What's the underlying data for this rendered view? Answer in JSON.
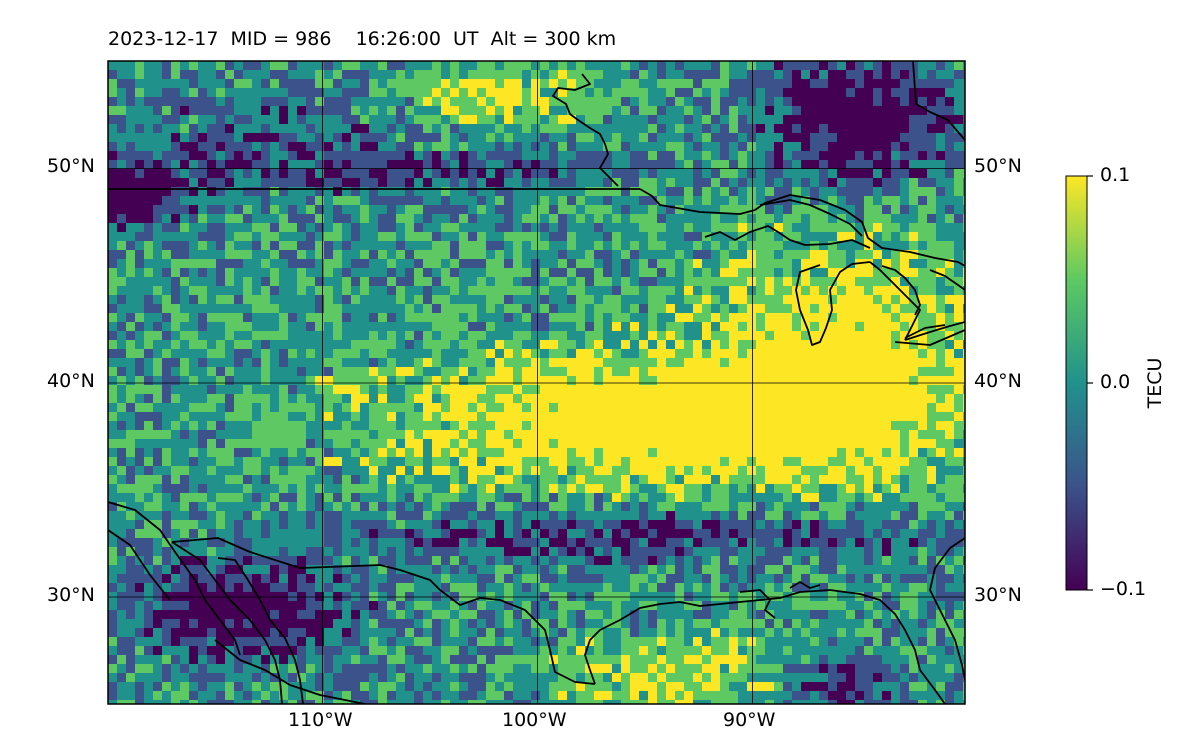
{
  "header": {
    "date": "2023-12-17",
    "mid_text": "MID = 986",
    "time_text": "16:26:00  UT",
    "alt_text": "Alt = 300 km"
  },
  "map": {
    "lon_range": [
      -119.87,
      -80.13
    ],
    "lat_range": [
      25.0,
      55.0
    ],
    "grid_lons": [
      -110,
      -100,
      -90
    ],
    "grid_lats": [
      30,
      40,
      50
    ],
    "lon_labels": [
      "110°W",
      "100°W",
      "90°W"
    ],
    "lat_labels": [
      "30°N",
      "40°N",
      "50°N"
    ],
    "gridlines": true,
    "coastlines": true,
    "colormap": "viridis",
    "palette": [
      "#440154",
      "#3b528b",
      "#21918c",
      "#5ec962",
      "#fde725"
    ]
  },
  "colorbar": {
    "label": "TECU",
    "min": -0.1,
    "max": 0.1,
    "tick_labels": [
      "0.1",
      "0.0",
      "−0.1"
    ]
  }
}
